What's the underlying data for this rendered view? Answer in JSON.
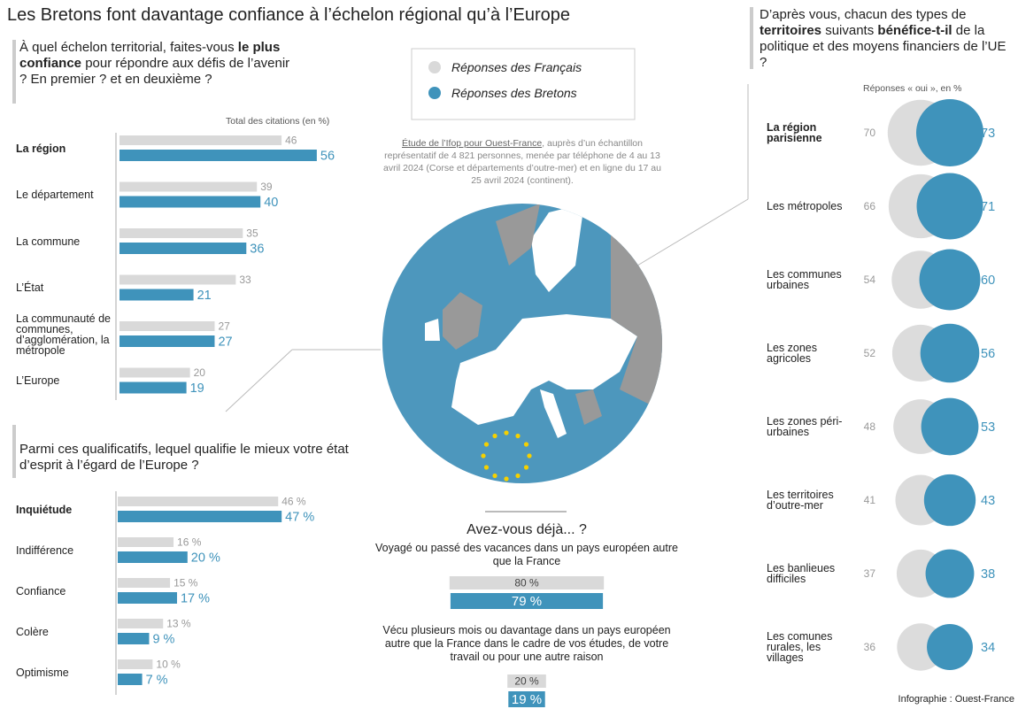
{
  "title": "Les Bretons font davantage confiance à l’échelon régional qu’à l’Europe",
  "study_note": [
    "Étude de l’Ifop pour Ouest-France",
    ", auprès d’un échantillon représentatif de 4 821 personnes, menée par téléphone de 4 au 13 avril 2024 (Corse et départements d’outre-mer) et en ligne du 17 au 25 avril 2024 (continent)."
  ],
  "credit": "Infographie : Ouest-France",
  "chart_data": [
    {
      "type": "bar",
      "orientation": "horizontal",
      "title": [
        "À quel échelon territorial, faites-vous ",
        "le plus confiance",
        " pour répondre aux défis de l’avenir ? En premier ? et en deuxième ?"
      ],
      "subtitle": "Total des citations (en %)",
      "categories": [
        "La région",
        "Le département",
        "La commune",
        "L’État",
        "La communauté de communes, d’agglomération, la métropole",
        "L’Europe"
      ],
      "highlight_index": 0,
      "xlim": [
        0,
        100
      ],
      "series": [
        {
          "name": "Réponses des Français",
          "color": "#d9d9d9",
          "values": [
            46,
            39,
            35,
            33,
            27,
            20
          ]
        },
        {
          "name": "Réponses des Bretons",
          "color": "#3f93bb",
          "values": [
            56,
            40,
            36,
            21,
            27,
            19
          ]
        }
      ]
    },
    {
      "type": "bar",
      "orientation": "horizontal",
      "title": [
        "Parmi ces qualificatifs, lequel qualifie le mieux votre état d’esprit à l’égard de l’Europe ?"
      ],
      "categories": [
        "Inquiétude",
        "Indifférence",
        "Confiance",
        "Colère",
        "Optimisme"
      ],
      "highlight_index": 0,
      "xlim": [
        0,
        100
      ],
      "series": [
        {
          "color": "#d9d9d9",
          "values": [
            46,
            16,
            15,
            13,
            10
          ],
          "value_labels": [
            "46 %",
            "16 %",
            "15 %",
            "13 %",
            "10 %"
          ]
        },
        {
          "color": "#3f93bb",
          "values": [
            47,
            20,
            17,
            9,
            7
          ],
          "value_labels": [
            "47 %",
            "20 %",
            "17 %",
            "9 %",
            "7 %"
          ]
        }
      ]
    },
    {
      "type": "bubble",
      "title": [
        "D’après vous, chacun des types de ",
        "territoires",
        " suivants ",
        "bénéfice-t-il",
        " de la politique et des moyens financiers de l’UE  ?"
      ],
      "subtitle": "Réponses « oui », en %",
      "categories": [
        "La région parisienne",
        "Les métropoles",
        "Les communes urbaines",
        "Les zones agricoles",
        "Les zones péri-urbaines",
        "Les territoires d’outre-mer",
        "Les banlieues difficiles",
        "Les comunes rurales, les villages"
      ],
      "highlight_index": 0,
      "series": [
        {
          "color": "#dcdcdc",
          "values": [
            70,
            66,
            54,
            52,
            48,
            41,
            37,
            36
          ]
        },
        {
          "color": "#3f93bb",
          "values": [
            73,
            71,
            60,
            56,
            53,
            43,
            38,
            34
          ]
        }
      ]
    },
    {
      "type": "bar",
      "orientation": "centered",
      "title": "Avez-vous déjà... ?",
      "categories": [
        "Voyagé ou passé des vacances dans un pays européen autre que la France",
        "Vécu plusieurs mois ou davantage dans un pays européen autre que la France dans le cadre de vos études, de votre travail ou pour une autre raison"
      ],
      "xlim": [
        0,
        100
      ],
      "series": [
        {
          "color": "#d9d9d9",
          "values": [
            80,
            20
          ],
          "value_labels": [
            "80 %",
            "20 %"
          ]
        },
        {
          "color": "#3f93bb",
          "values": [
            79,
            19
          ],
          "value_labels": [
            "79 %",
            "19 %"
          ]
        }
      ]
    }
  ]
}
